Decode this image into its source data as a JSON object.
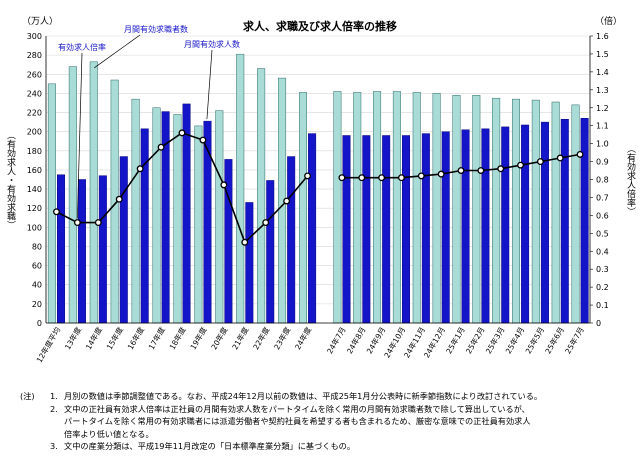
{
  "chart_data": {
    "type": "bar",
    "title": "求人、求職及び求人倍率の推移",
    "ylabel": "（有効求人・有効求職）",
    "ylabel_unit": "（万人）",
    "y2label": "（有効求人倍率）",
    "y2label_unit": "（倍）",
    "ylim": [
      0,
      300
    ],
    "y2lim": [
      0,
      1.6
    ],
    "yticks": [
      "0",
      "20",
      "40",
      "60",
      "80",
      "100",
      "120",
      "140",
      "160",
      "180",
      "200",
      "220",
      "240",
      "260",
      "280",
      "300"
    ],
    "y2ticks": [
      "0",
      "0.1",
      "0.2",
      "0.3",
      "0.4",
      "0.5",
      "0.6",
      "0.7",
      "0.8",
      "0.9",
      "1.0",
      "1.1",
      "1.2",
      "1.3",
      "1.4",
      "1.5",
      "1.6"
    ],
    "annual_categories": [
      "12年度平均",
      "13年度",
      "14年度",
      "15年度",
      "16年度",
      "17年度",
      "18年度",
      "19年度",
      "20年度",
      "21年度",
      "22年度",
      "23年度",
      "24年度"
    ],
    "monthly_categories": [
      "24年7月",
      "24年8月",
      "24年9月",
      "24年10月",
      "24年11月",
      "24年12月",
      "25年1月",
      "25年2月",
      "25年3月",
      "25年4月",
      "25年5月",
      "25年6月",
      "25年7月"
    ],
    "series": [
      {
        "name": "月間有効求職者数",
        "color": "#a9dcd6",
        "axis": "left",
        "annual": [
          250,
          268,
          273,
          254,
          234,
          225,
          218,
          206,
          222,
          281,
          266,
          256,
          241
        ],
        "monthly": [
          242,
          241,
          242,
          242,
          241,
          240,
          238,
          238,
          235,
          234,
          233,
          231,
          228
        ]
      },
      {
        "name": "月間有効求人数",
        "color": "#1414c8",
        "axis": "left",
        "annual": [
          155,
          150,
          154,
          174,
          203,
          221,
          229,
          211,
          171,
          126,
          149,
          174,
          198
        ],
        "monthly": [
          196,
          196,
          196,
          196,
          198,
          200,
          202,
          203,
          205,
          207,
          210,
          213,
          214
        ]
      },
      {
        "name": "有効求人倍率",
        "color": "#000000",
        "axis": "right",
        "annual": [
          0.62,
          0.56,
          0.56,
          0.69,
          0.86,
          0.98,
          1.06,
          1.02,
          0.77,
          0.45,
          0.56,
          0.68,
          0.82
        ],
        "monthly": [
          0.81,
          0.81,
          0.81,
          0.81,
          0.82,
          0.83,
          0.85,
          0.85,
          0.86,
          0.88,
          0.9,
          0.92,
          0.94
        ]
      }
    ],
    "callouts": [
      "有効求人倍率",
      "月間有効求職者数",
      "月間有効求人数"
    ]
  },
  "notes": {
    "label": "(注)",
    "items": [
      {
        "num": "1.",
        "text": "月別の数値は季節調整値である。なお、平成24年12月以前の数値は、平成25年1月分公表時に新季節指数により改訂されている。"
      },
      {
        "num": "2.",
        "text": "文中の正社員有効求人倍率は正社員の月間有効求人数をパートタイムを除く常用の月間有効求職者数で除して算出しているが、\nパートタイムを除く常用の有効求職者には派遣労働者や契約社員を希望する者も含まれるため、厳密な意味での正社員有効求人\n倍率より低い値となる。"
      },
      {
        "num": "3.",
        "text": "文中の産業分類は、平成19年11月改定の「日本標準産業分類」に基づくもの。"
      }
    ]
  }
}
